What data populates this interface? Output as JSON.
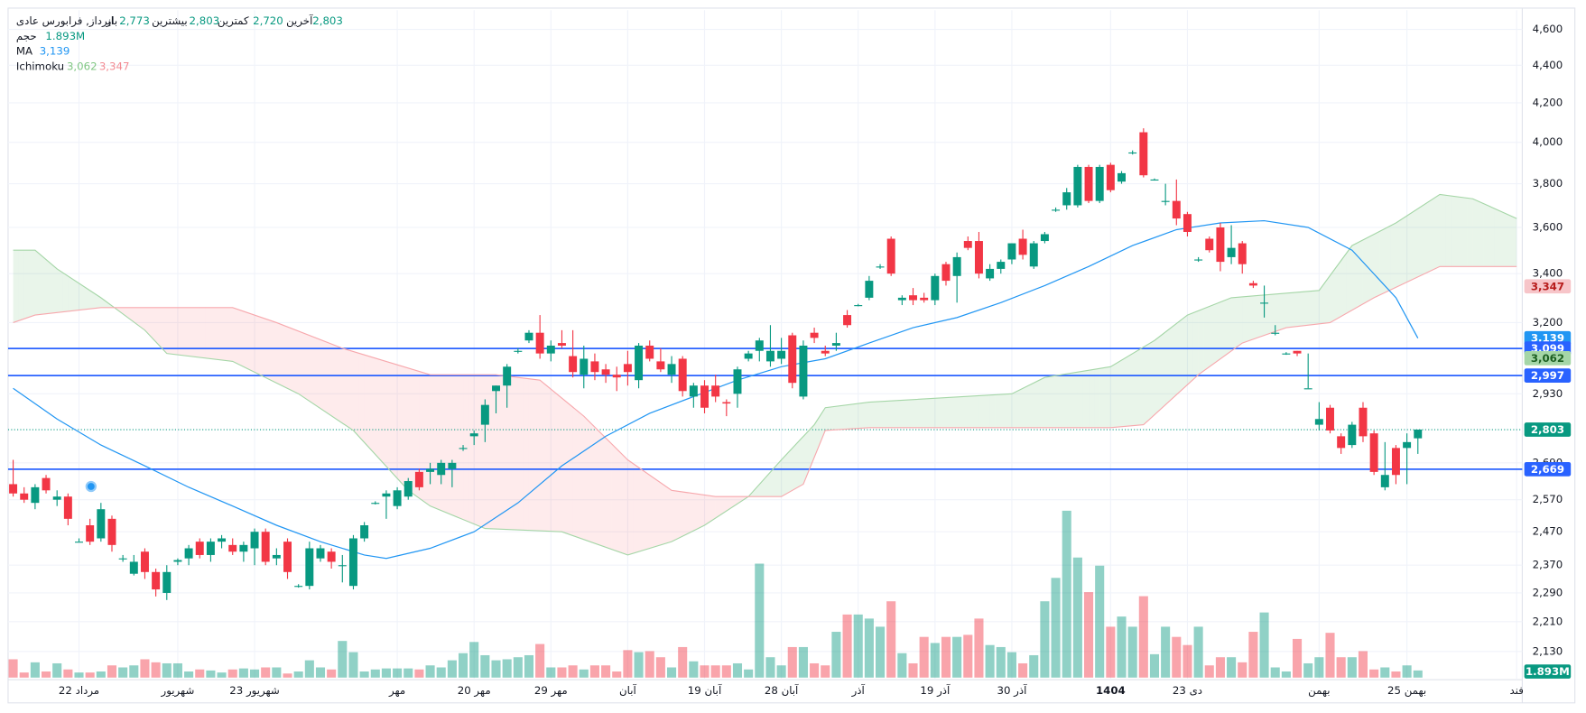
{
  "chart_data": {
    "type": "candlestick",
    "header": {
      "symbol": "ایرداز, فرابورس عادی",
      "fields": [
        {
          "name": "باز",
          "value": "2,773"
        },
        {
          "name": "بیشترین",
          "value": "2,803"
        },
        {
          "name": "کمترین",
          "value": "2,720"
        },
        {
          "name": "آخرین",
          "value": "2,803"
        }
      ]
    },
    "legend": [
      {
        "name": "حجم",
        "values": [
          {
            "text": "1.893M",
            "color": "#089981"
          }
        ]
      },
      {
        "name": "MA",
        "values": [
          {
            "text": "3,139",
            "color": "#2196f3"
          }
        ]
      },
      {
        "name": "Ichimoku",
        "values": [
          {
            "text": "3,062",
            "color": "#81c784"
          },
          {
            "text": "3,347",
            "color": "#f28b93"
          }
        ]
      }
    ],
    "log": true,
    "ylim": [
      2057,
      4711
    ],
    "yticks": [
      {
        "value": 4600,
        "label": "4,600"
      },
      {
        "value": 4400,
        "label": "4,400"
      },
      {
        "value": 4200,
        "label": "4,200"
      },
      {
        "value": 4000,
        "label": "4,000"
      },
      {
        "value": 3800,
        "label": "3,800"
      },
      {
        "value": 3600,
        "label": "3,600"
      },
      {
        "value": 3400,
        "label": "3,400"
      },
      {
        "value": 3200,
        "label": "3,200"
      },
      {
        "value": 2930,
        "label": "2,930"
      },
      {
        "value": 2690,
        "label": "2,690"
      },
      {
        "value": 2570,
        "label": "2,570"
      },
      {
        "value": 2470,
        "label": "2,470"
      },
      {
        "value": 2370,
        "label": "2,370"
      },
      {
        "value": 2290,
        "label": "2,290"
      },
      {
        "value": 2210,
        "label": "2,210"
      },
      {
        "value": 2130,
        "label": "2,130"
      }
    ],
    "xticks": [
      {
        "value": 6,
        "label": "22 مرداد"
      },
      {
        "value": 15,
        "label": "شهریور"
      },
      {
        "value": 22,
        "label": "23 شهریور"
      },
      {
        "value": 35,
        "label": "مهر"
      },
      {
        "value": 42,
        "label": "20 مهر"
      },
      {
        "value": 49,
        "label": "29 مهر"
      },
      {
        "value": 56,
        "label": "آبان"
      },
      {
        "value": 63,
        "label": "19 آبان"
      },
      {
        "value": 70,
        "label": "28 آبان"
      },
      {
        "value": 77,
        "label": "آذر"
      },
      {
        "value": 84,
        "label": "19 آذر"
      },
      {
        "value": 91,
        "label": "30 آذر"
      },
      {
        "value": 100,
        "label": "1404",
        "bold": true
      },
      {
        "value": 107,
        "label": "23 دی"
      },
      {
        "value": 119,
        "label": "بهمن"
      },
      {
        "value": 127,
        "label": "25 بهمن"
      },
      {
        "value": 137,
        "label": "فند"
      }
    ],
    "grid": true,
    "up_color": "#089981",
    "down_color": "#f23645",
    "candles": [
      [
        2620,
        2700,
        2580,
        2590
      ],
      [
        2590,
        2610,
        2560,
        2570
      ],
      [
        2560,
        2620,
        2540,
        2610
      ],
      [
        2640,
        2650,
        2590,
        2600
      ],
      [
        2570,
        2600,
        2550,
        2580
      ],
      [
        2580,
        2590,
        2490,
        2510
      ],
      [
        2440,
        2450,
        2440,
        2440
      ],
      [
        2490,
        2510,
        2430,
        2440
      ],
      [
        2450,
        2560,
        2440,
        2540
      ],
      [
        2510,
        2520,
        2410,
        2430
      ],
      [
        2390,
        2400,
        2380,
        2390
      ],
      [
        2345,
        2400,
        2340,
        2380
      ],
      [
        2410,
        2420,
        2330,
        2350
      ],
      [
        2350,
        2360,
        2280,
        2300
      ],
      [
        2290,
        2370,
        2270,
        2350
      ],
      [
        2380,
        2390,
        2370,
        2385
      ],
      [
        2390,
        2430,
        2370,
        2420
      ],
      [
        2440,
        2450,
        2390,
        2400
      ],
      [
        2400,
        2450,
        2380,
        2440
      ],
      [
        2440,
        2460,
        2420,
        2450
      ],
      [
        2430,
        2450,
        2400,
        2410
      ],
      [
        2410,
        2440,
        2380,
        2430
      ],
      [
        2420,
        2480,
        2370,
        2470
      ],
      [
        2470,
        2480,
        2370,
        2380
      ],
      [
        2390,
        2420,
        2370,
        2400
      ],
      [
        2440,
        2450,
        2330,
        2350
      ],
      [
        2310,
        2315,
        2305,
        2310
      ],
      [
        2310,
        2440,
        2300,
        2420
      ],
      [
        2390,
        2430,
        2380,
        2420
      ],
      [
        2410,
        2420,
        2360,
        2380
      ],
      [
        2370,
        2400,
        2320,
        2370
      ],
      [
        2310,
        2460,
        2300,
        2450
      ],
      [
        2450,
        2500,
        2440,
        2490
      ],
      [
        2560,
        2565,
        2555,
        2560
      ],
      [
        2580,
        2600,
        2510,
        2590
      ],
      [
        2550,
        2610,
        2540,
        2600
      ],
      [
        2580,
        2640,
        2570,
        2630
      ],
      [
        2660,
        2670,
        2600,
        2610
      ],
      [
        2660,
        2690,
        2620,
        2670
      ],
      [
        2650,
        2700,
        2620,
        2690
      ],
      [
        2670,
        2700,
        2610,
        2690
      ],
      [
        2740,
        2750,
        2730,
        2740
      ],
      [
        2780,
        2800,
        2750,
        2790
      ],
      [
        2820,
        2910,
        2760,
        2890
      ],
      [
        2940,
        2960,
        2860,
        2960
      ],
      [
        2960,
        3040,
        2880,
        3030
      ],
      [
        3090,
        3100,
        3080,
        3090
      ],
      [
        3130,
        3170,
        3120,
        3160
      ],
      [
        3160,
        3230,
        3060,
        3080
      ],
      [
        3080,
        3130,
        3050,
        3110
      ],
      [
        3120,
        3170,
        3100,
        3110
      ],
      [
        3070,
        3170,
        2990,
        3010
      ],
      [
        3000,
        3110,
        2950,
        3060
      ],
      [
        3050,
        3080,
        2980,
        3010
      ],
      [
        3020,
        3040,
        2970,
        3000
      ],
      [
        3000,
        3030,
        2940,
        2990
      ],
      [
        3040,
        3090,
        2960,
        3010
      ],
      [
        2980,
        3120,
        2950,
        3110
      ],
      [
        3110,
        3130,
        3050,
        3060
      ],
      [
        3050,
        3100,
        3010,
        3020
      ],
      [
        3000,
        3070,
        2970,
        3040
      ],
      [
        3060,
        3070,
        2920,
        2940
      ],
      [
        2920,
        2970,
        2880,
        2960
      ],
      [
        2960,
        2980,
        2860,
        2880
      ],
      [
        2960,
        3000,
        2900,
        2920
      ],
      [
        2900,
        2910,
        2850,
        2895
      ],
      [
        2930,
        3030,
        2880,
        3020
      ],
      [
        3060,
        3090,
        3050,
        3080
      ],
      [
        3090,
        3140,
        3050,
        3130
      ],
      [
        3050,
        3190,
        3030,
        3090
      ],
      [
        3060,
        3140,
        3040,
        3090
      ],
      [
        3150,
        3160,
        2950,
        2970
      ],
      [
        2920,
        3130,
        2910,
        3110
      ],
      [
        3160,
        3180,
        3120,
        3140
      ],
      [
        3090,
        3110,
        3070,
        3080
      ],
      [
        3110,
        3160,
        3090,
        3120
      ],
      [
        3230,
        3250,
        3180,
        3190
      ],
      [
        3270,
        3275,
        3265,
        3270
      ],
      [
        3300,
        3390,
        3290,
        3370
      ],
      [
        3430,
        3440,
        3420,
        3430
      ],
      [
        3550,
        3560,
        3390,
        3400
      ],
      [
        3290,
        3310,
        3270,
        3300
      ],
      [
        3310,
        3340,
        3270,
        3290
      ],
      [
        3300,
        3320,
        3280,
        3290
      ],
      [
        3290,
        3400,
        3270,
        3390
      ],
      [
        3440,
        3450,
        3350,
        3370
      ],
      [
        3390,
        3490,
        3280,
        3470
      ],
      [
        3540,
        3560,
        3500,
        3510
      ],
      [
        3540,
        3580,
        3380,
        3400
      ],
      [
        3380,
        3440,
        3370,
        3420
      ],
      [
        3420,
        3460,
        3400,
        3450
      ],
      [
        3460,
        3530,
        3440,
        3530
      ],
      [
        3550,
        3590,
        3460,
        3480
      ],
      [
        3430,
        3540,
        3420,
        3530
      ],
      [
        3540,
        3580,
        3530,
        3570
      ],
      [
        3680,
        3690,
        3670,
        3680
      ],
      [
        3700,
        3780,
        3680,
        3760
      ],
      [
        3700,
        3890,
        3690,
        3880
      ],
      [
        3880,
        3890,
        3710,
        3720
      ],
      [
        3720,
        3890,
        3710,
        3880
      ],
      [
        3890,
        3900,
        3760,
        3770
      ],
      [
        3810,
        3860,
        3800,
        3850
      ],
      [
        3950,
        3960,
        3940,
        3950
      ],
      [
        4050,
        4070,
        3830,
        3840
      ],
      [
        3820,
        3825,
        3815,
        3820
      ],
      [
        3720,
        3800,
        3700,
        3720
      ],
      [
        3720,
        3820,
        3610,
        3640
      ],
      [
        3660,
        3670,
        3560,
        3580
      ],
      [
        3460,
        3470,
        3450,
        3460
      ],
      [
        3550,
        3560,
        3490,
        3500
      ],
      [
        3600,
        3620,
        3410,
        3450
      ],
      [
        3470,
        3610,
        3440,
        3510
      ],
      [
        3530,
        3540,
        3400,
        3440
      ],
      [
        3360,
        3370,
        3340,
        3350
      ],
      [
        3280,
        3350,
        3220,
        3280
      ],
      [
        3160,
        3190,
        3150,
        3160
      ],
      [
        3080,
        3085,
        3075,
        3080
      ],
      [
        3090,
        3090,
        3070,
        3080
      ],
      [
        2950,
        3080,
        2950,
        2950
      ],
      [
        2820,
        2900,
        2800,
        2840
      ],
      [
        2880,
        2890,
        2790,
        2800
      ],
      [
        2780,
        2790,
        2720,
        2740
      ],
      [
        2750,
        2830,
        2740,
        2820
      ],
      [
        2880,
        2900,
        2760,
        2780
      ],
      [
        2790,
        2800,
        2650,
        2660
      ],
      [
        2610,
        2760,
        2600,
        2650
      ],
      [
        2740,
        2750,
        2620,
        2650
      ],
      [
        2740,
        2790,
        2620,
        2760
      ],
      [
        2773,
        2803,
        2720,
        2803
      ]
    ],
    "volume": [
      4860000,
      1350000,
      4050000,
      1620000,
      3780000,
      2160000,
      1350000,
      1350000,
      1620000,
      3240000,
      2700000,
      3240000,
      4860000,
      4050000,
      3780000,
      3780000,
      1620000,
      2160000,
      1890000,
      1350000,
      2160000,
      2430000,
      2160000,
      2700000,
      2700000,
      1080000,
      1620000,
      4590000,
      2700000,
      2160000,
      9720000,
      6750000,
      1620000,
      2160000,
      2430000,
      2430000,
      2430000,
      2160000,
      3240000,
      2700000,
      4590000,
      6480000,
      9450000,
      5940000,
      4590000,
      4860000,
      5400000,
      5940000,
      8910000,
      2700000,
      2700000,
      3240000,
      2160000,
      3240000,
      3240000,
      1620000,
      7290000,
      6750000,
      7020000,
      5400000,
      2700000,
      8100000,
      4320000,
      3240000,
      3240000,
      3240000,
      3780000,
      2160000,
      30240000,
      5400000,
      3240000,
      8100000,
      8100000,
      3780000,
      3240000,
      12150000,
      16740000,
      16740000,
      15660000,
      13500000,
      20250000,
      6480000,
      3780000,
      10800000,
      9180000,
      10800000,
      10800000,
      11340000,
      15660000,
      8640000,
      8100000,
      6750000,
      3780000,
      5940000,
      20250000,
      26460000,
      44280000,
      31860000,
      22680000,
      29700000,
      13500000,
      16200000,
      13500000,
      21600000,
      6210000,
      13500000,
      10800000,
      8640000,
      13500000,
      3240000,
      5400000,
      5400000,
      4050000,
      12150000,
      17280000,
      2700000,
      1620000,
      10260000,
      3780000,
      5400000,
      11880000,
      5400000,
      5400000,
      7020000,
      2160000,
      2700000,
      1620000,
      3240000,
      1893000
    ],
    "ma": {
      "color": "#2196f3",
      "x": [
        0,
        4,
        8,
        12,
        16,
        20,
        24,
        28,
        32,
        34,
        38,
        42,
        46,
        50,
        54,
        58,
        62,
        66,
        70,
        74,
        78,
        82,
        86,
        90,
        94,
        98,
        102,
        106,
        110,
        114,
        118,
        122,
        126,
        128
      ],
      "values": [
        2950,
        2840,
        2750,
        2680,
        2610,
        2550,
        2490,
        2440,
        2400,
        2390,
        2420,
        2470,
        2560,
        2680,
        2780,
        2860,
        2920,
        2980,
        3030,
        3060,
        3120,
        3180,
        3220,
        3280,
        3350,
        3430,
        3520,
        3590,
        3620,
        3630,
        3600,
        3500,
        3300,
        3139
      ]
    },
    "ichimoku": {
      "span_a": {
        "color": "#a5d6a7",
        "fill": "rgba(76,175,80,0.12)",
        "x": [
          0,
          2,
          4,
          8,
          12,
          14,
          20,
          26,
          31,
          36,
          38,
          43,
          50,
          56,
          60,
          63,
          67,
          70,
          73,
          74,
          78,
          91,
          94,
          100,
          104,
          107,
          111,
          119,
          122,
          126,
          130,
          133,
          137
        ],
        "values": [
          3500,
          3500,
          3420,
          3300,
          3170,
          3080,
          3050,
          2930,
          2800,
          2600,
          2550,
          2480,
          2470,
          2400,
          2440,
          2490,
          2580,
          2700,
          2820,
          2880,
          2900,
          2930,
          2990,
          3030,
          3130,
          3230,
          3300,
          3330,
          3520,
          3620,
          3750,
          3730,
          3640
        ]
      },
      "span_b": {
        "color": "#f7a8ad",
        "fill": "rgba(242,54,69,0.1)",
        "x": [
          0,
          2,
          8,
          20,
          24,
          30,
          38,
          44,
          48,
          52,
          56,
          60,
          64,
          70,
          72,
          74,
          78,
          100,
          103,
          108,
          112,
          116,
          120,
          124,
          130,
          137
        ],
        "values": [
          3200,
          3230,
          3260,
          3260,
          3200,
          3100,
          3000,
          3000,
          2980,
          2850,
          2700,
          2600,
          2580,
          2580,
          2620,
          2800,
          2810,
          2810,
          2820,
          3000,
          3120,
          3180,
          3200,
          3300,
          3430,
          3430
        ]
      }
    },
    "hlines": [
      {
        "value": 3099,
        "color": "#2962ff"
      },
      {
        "value": 2997,
        "color": "#2962ff"
      },
      {
        "value": 2669,
        "color": "#2962ff"
      },
      {
        "value": 2803,
        "color": "#089981",
        "dotted": true
      }
    ],
    "badges": [
      {
        "value": 3347,
        "label": "3,347",
        "color": "#f7c5c9",
        "text_color": "#b71c1c"
      },
      {
        "value": 3139,
        "label": "3,139",
        "color": "#2196f3",
        "text_color": "#ffffff"
      },
      {
        "value": 3099,
        "label": "3,099",
        "color": "#2962ff",
        "text_color": "#ffffff"
      },
      {
        "value": 3062,
        "label": "3,062",
        "color": "#a5d6a7",
        "text_color": "#1b5e20"
      },
      {
        "value": 2997,
        "label": "2,997",
        "color": "#2962ff",
        "text_color": "#ffffff"
      },
      {
        "value": 2803,
        "label": "2,803",
        "color": "#089981",
        "text_color": "#ffffff"
      },
      {
        "value": 2669,
        "label": "2,669",
        "color": "#2962ff",
        "text_color": "#ffffff"
      }
    ]
  }
}
